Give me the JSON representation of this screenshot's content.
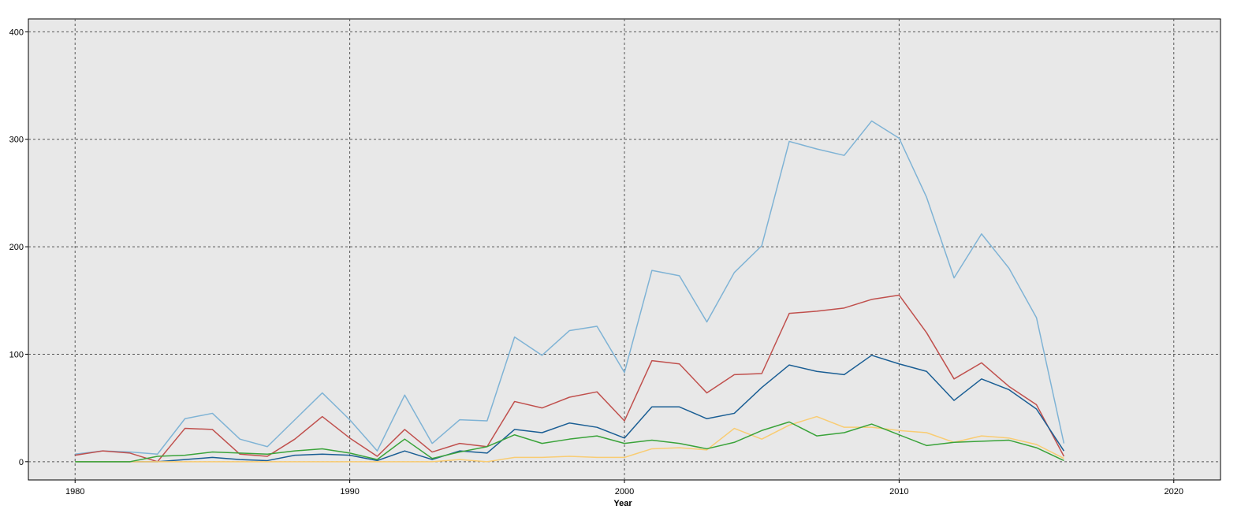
{
  "chart_data": {
    "type": "line",
    "title": "",
    "xlabel": "Year",
    "ylabel": "",
    "xlim": [
      1978.3,
      2021.7
    ],
    "ylim": [
      -17,
      412
    ],
    "x_ticks": [
      1980,
      1990,
      2000,
      2010,
      2020
    ],
    "y_ticks": [
      0,
      100,
      200,
      300,
      400
    ],
    "grid": true,
    "background": "#e8e8e8",
    "x": [
      1980,
      1981,
      1982,
      1983,
      1984,
      1985,
      1986,
      1987,
      1988,
      1989,
      1990,
      1991,
      1992,
      1993,
      1994,
      1995,
      1996,
      1997,
      1998,
      1999,
      2000,
      2001,
      2002,
      2003,
      2004,
      2005,
      2006,
      2007,
      2008,
      2009,
      2010,
      2011,
      2012,
      2013,
      2014,
      2015,
      2016
    ],
    "series": [
      {
        "color": "#7fb3d5",
        "values": [
          7,
          10,
          9,
          7,
          40,
          45,
          21,
          14,
          39,
          64,
          39,
          10,
          62,
          17,
          39,
          38,
          116,
          99,
          122,
          126,
          83,
          178,
          173,
          130,
          176,
          201,
          298,
          291,
          285,
          317,
          301,
          246,
          171,
          212,
          180,
          134,
          17
        ]
      },
      {
        "color": "#c0504d",
        "values": [
          6,
          10,
          8,
          0,
          31,
          30,
          7,
          5,
          21,
          42,
          22,
          5,
          30,
          9,
          17,
          14,
          56,
          50,
          60,
          65,
          38,
          94,
          91,
          64,
          81,
          82,
          138,
          140,
          143,
          151,
          155,
          120,
          77,
          92,
          70,
          53,
          5
        ]
      },
      {
        "color": "#1a5e94",
        "values": [
          0,
          0,
          0,
          0,
          2,
          4,
          2,
          1,
          6,
          7,
          6,
          1,
          10,
          2,
          10,
          8,
          30,
          27,
          36,
          32,
          22,
          51,
          51,
          40,
          45,
          69,
          90,
          84,
          81,
          99,
          91,
          84,
          57,
          77,
          67,
          49,
          10
        ]
      },
      {
        "color": "#f9cc72",
        "values": [
          0,
          0,
          0,
          0,
          0,
          0,
          0,
          0,
          0,
          0,
          0,
          0,
          0,
          0,
          2,
          0,
          4,
          4,
          5,
          4,
          4,
          12,
          13,
          11,
          31,
          21,
          34,
          42,
          32,
          32,
          29,
          27,
          18,
          24,
          22,
          16,
          3
        ]
      },
      {
        "color": "#3aa33a",
        "values": [
          0,
          0,
          0,
          5,
          6,
          9,
          8,
          7,
          10,
          12,
          8,
          2,
          21,
          3,
          9,
          14,
          25,
          17,
          21,
          24,
          17,
          20,
          17,
          12,
          18,
          29,
          37,
          24,
          27,
          35,
          25,
          15,
          18,
          19,
          20,
          13,
          1
        ]
      }
    ]
  }
}
